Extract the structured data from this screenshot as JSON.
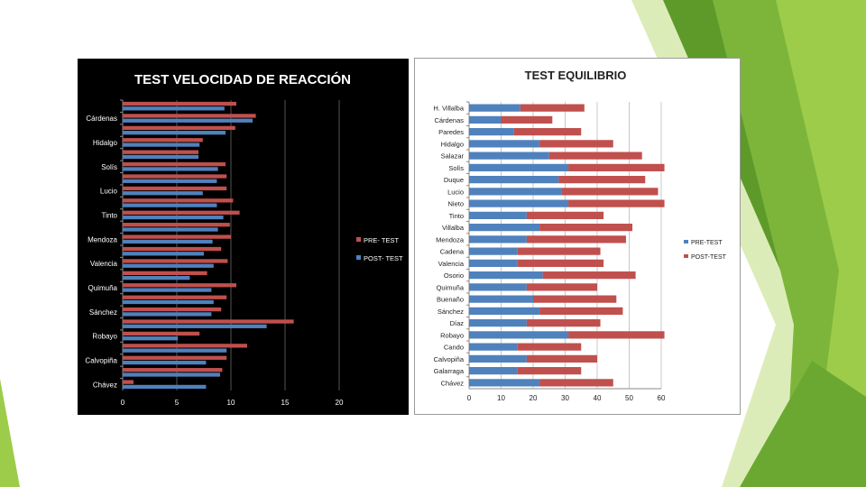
{
  "colors": {
    "slide_green_dark": "#5e9a2a",
    "slide_green_mid": "#7cb53a",
    "slide_green_light": "#9ccc4a",
    "slide_green_pale": "#cfe6a0",
    "left_bg": "#000000",
    "left_text": "#ffffff",
    "right_bg": "#ffffff",
    "right_text": "#222222",
    "pre_color": "#c0504d",
    "post_color": "#4f81bd",
    "grid_right": "#c8c8c8"
  },
  "chart_data": [
    {
      "type": "bar",
      "orientation": "horizontal",
      "title": "TEST VELOCIDAD DE REACCIÓN",
      "categories": [
        "",
        "Cárdenas",
        "",
        "Hidalgo",
        "",
        "Solís",
        "",
        "Lucio",
        "",
        "Tinto",
        "",
        "Mendoza",
        "",
        "Valencia",
        "",
        "Quimuña",
        "",
        "Sánchez",
        "",
        "Robayo",
        "",
        "Calvopiña",
        "",
        "Chávez"
      ],
      "series": [
        {
          "name": "PRE- TEST",
          "color": "#c0504d",
          "values": [
            10.5,
            12.3,
            10.4,
            7.4,
            7.0,
            9.5,
            9.6,
            9.6,
            10.2,
            10.8,
            9.9,
            10.0,
            9.1,
            9.7,
            7.8,
            10.5,
            9.6,
            9.1,
            15.8,
            7.1,
            11.5,
            9.6,
            9.2,
            1.0
          ]
        },
        {
          "name": "POST- TEST",
          "color": "#4f81bd",
          "values": [
            9.4,
            12.0,
            9.5,
            7.1,
            7.0,
            8.8,
            8.7,
            7.4,
            8.7,
            9.3,
            8.8,
            8.3,
            7.5,
            8.4,
            6.2,
            8.2,
            8.4,
            8.2,
            13.3,
            5.1,
            9.6,
            7.7,
            9.0,
            7.7
          ]
        }
      ],
      "xlim": [
        0,
        20
      ],
      "xticks": [
        0,
        5,
        10,
        15,
        20
      ],
      "grid": true,
      "legend_position": "right"
    },
    {
      "type": "bar",
      "orientation": "horizontal",
      "stacked": true,
      "title": "TEST EQUILIBRIO",
      "categories": [
        "H. Villalba",
        "Cárdenas",
        "Paredes",
        "Hidalgo",
        "Salazar",
        "Solís",
        "Duque",
        "Lucio",
        "Nieto",
        "Tinto",
        "Villalba",
        "Mendoza",
        "Cadena",
        "Valencia",
        "Osorio",
        "Quimuña",
        "Buenaño",
        "Sánchez",
        "Díaz",
        "Robayo",
        "Cando",
        "Calvopiña",
        "Galarraga",
        "Chávez"
      ],
      "series": [
        {
          "name": "PRE-TEST",
          "color": "#4f81bd",
          "values": [
            16,
            10,
            14,
            22,
            25,
            31,
            28,
            29,
            31,
            18,
            22,
            18,
            15,
            15,
            23,
            18,
            20,
            22,
            18,
            31,
            15,
            18,
            15,
            22
          ]
        },
        {
          "name": "POST-TEST",
          "color": "#c0504d",
          "values": [
            20,
            16,
            21,
            23,
            29,
            30,
            27,
            30,
            30,
            24,
            29,
            31,
            26,
            27,
            29,
            22,
            26,
            26,
            23,
            30,
            20,
            22,
            20,
            23
          ]
        }
      ],
      "xlim": [
        0,
        60
      ],
      "xticks": [
        0,
        10,
        20,
        30,
        40,
        50,
        60
      ],
      "grid": true,
      "legend_position": "right"
    }
  ]
}
